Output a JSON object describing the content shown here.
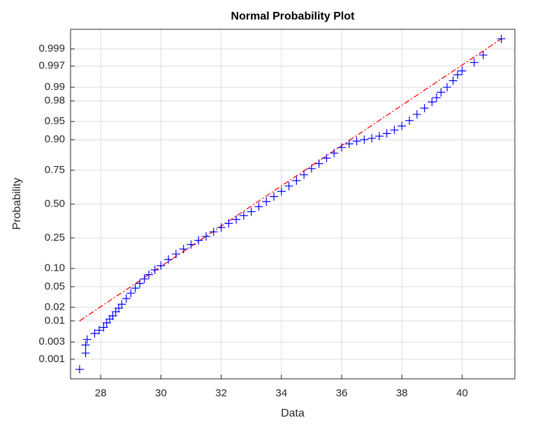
{
  "chart_data": {
    "type": "probability-plot",
    "title": "Normal Probability Plot",
    "x_label": "Data",
    "y_label": "Probability",
    "yscale": "normal-probability",
    "grid": true,
    "xlim": [
      27,
      41.75
    ],
    "ylim": [
      0.00025,
      0.99975
    ],
    "xticks": [
      28,
      30,
      32,
      34,
      36,
      38,
      40
    ],
    "yticks": [
      0.001,
      0.003,
      0.01,
      0.02,
      0.05,
      {
        "value": 0.1,
        "label": "0.10"
      },
      0.25,
      {
        "value": 0.5,
        "label": "0.50"
      },
      0.75,
      {
        "value": 0.9,
        "label": "0.90"
      },
      0.95,
      0.98,
      0.99,
      0.997,
      0.999
    ],
    "series": [
      {
        "color": "#0000ff",
        "x": [
          27.3,
          27.5,
          27.5,
          27.55,
          27.8,
          27.95,
          28.1,
          28.2,
          28.3,
          28.4,
          28.5,
          28.6,
          28.7,
          28.85,
          29.0,
          29.15,
          29.3,
          29.45,
          29.6,
          29.8,
          30.0,
          30.25,
          30.5,
          30.75,
          31.0,
          31.25,
          31.5,
          31.75,
          32.0,
          32.25,
          32.5,
          32.75,
          33.0,
          33.25,
          33.5,
          33.75,
          34.0,
          34.25,
          34.5,
          34.75,
          35.0,
          35.25,
          35.5,
          35.75,
          36.0,
          36.25,
          36.5,
          36.75,
          37.0,
          37.25,
          37.5,
          37.75,
          38.0,
          38.25,
          38.5,
          38.75,
          39.0,
          39.15,
          39.3,
          39.5,
          39.7,
          39.85,
          40.0,
          40.4,
          40.7,
          41.3
        ],
        "y": [
          0.0005,
          0.0015,
          0.0025,
          0.0035,
          0.005,
          0.006,
          0.007,
          0.009,
          0.011,
          0.013,
          0.016,
          0.019,
          0.023,
          0.03,
          0.038,
          0.047,
          0.057,
          0.068,
          0.08,
          0.095,
          0.11,
          0.135,
          0.16,
          0.185,
          0.21,
          0.235,
          0.26,
          0.29,
          0.32,
          0.35,
          0.38,
          0.41,
          0.44,
          0.48,
          0.52,
          0.56,
          0.6,
          0.64,
          0.68,
          0.72,
          0.76,
          0.79,
          0.82,
          0.845,
          0.87,
          0.885,
          0.895,
          0.9,
          0.905,
          0.912,
          0.92,
          0.93,
          0.94,
          0.952,
          0.963,
          0.972,
          0.979,
          0.983,
          0.987,
          0.99,
          0.993,
          0.995,
          0.996,
          0.9976,
          0.9985,
          0.9995
        ]
      }
    ],
    "reference_line": {
      "color": "#ff0000",
      "x": [
        27.3,
        41.3
      ],
      "y": [
        0.01,
        0.9995
      ]
    }
  }
}
